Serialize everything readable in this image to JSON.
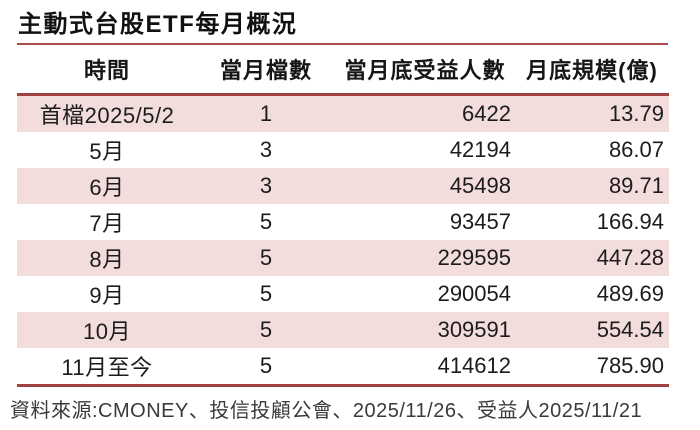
{
  "title": "主動式台股ETF每月概況",
  "table": {
    "headers": {
      "time": "時間",
      "funds": "當月檔數",
      "holders": "當月底受益人數",
      "scale": "月底規模(億)"
    },
    "rows": [
      {
        "time": "首檔2025/5/2",
        "funds": "1",
        "holders": "6422",
        "scale": "13.79"
      },
      {
        "time": "5月",
        "funds": "3",
        "holders": "42194",
        "scale": "86.07"
      },
      {
        "time": "6月",
        "funds": "3",
        "holders": "45498",
        "scale": "89.71"
      },
      {
        "time": "7月",
        "funds": "5",
        "holders": "93457",
        "scale": "166.94"
      },
      {
        "time": "8月",
        "funds": "5",
        "holders": "229595",
        "scale": "447.28"
      },
      {
        "time": "9月",
        "funds": "5",
        "holders": "290054",
        "scale": "489.69"
      },
      {
        "time": "10月",
        "funds": "5",
        "holders": "309591",
        "scale": "554.54"
      },
      {
        "time": "11月至今",
        "funds": "5",
        "holders": "414612",
        "scale": "785.90"
      }
    ]
  },
  "footer": {
    "source": "資料來源:CMONEY、投信投顧公會、2025/11/26、受益人2025/11/21"
  },
  "colors": {
    "accent_line": "#9e4341",
    "title_rule": "#a94b4b",
    "row_stripe": "#f3dddc"
  },
  "chart_data": {
    "type": "table",
    "title": "主動式台股ETF每月概況",
    "columns": [
      "時間",
      "當月檔數",
      "當月底受益人數",
      "月底規模(億)"
    ],
    "rows": [
      [
        "首檔2025/5/2",
        1,
        6422,
        13.79
      ],
      [
        "5月",
        3,
        42194,
        86.07
      ],
      [
        "6月",
        3,
        45498,
        89.71
      ],
      [
        "7月",
        5,
        93457,
        166.94
      ],
      [
        "8月",
        5,
        229595,
        447.28
      ],
      [
        "9月",
        5,
        290054,
        489.69
      ],
      [
        "10月",
        5,
        309591,
        554.54
      ],
      [
        "11月至今",
        5,
        414612,
        785.9
      ]
    ],
    "source": "資料來源:CMONEY、投信投顧公會、2025/11/26、受益人2025/11/21",
    "layout_hints": {
      "striped_rows": "odd rows pink",
      "alignment": [
        "center",
        "center",
        "right",
        "right"
      ]
    }
  }
}
